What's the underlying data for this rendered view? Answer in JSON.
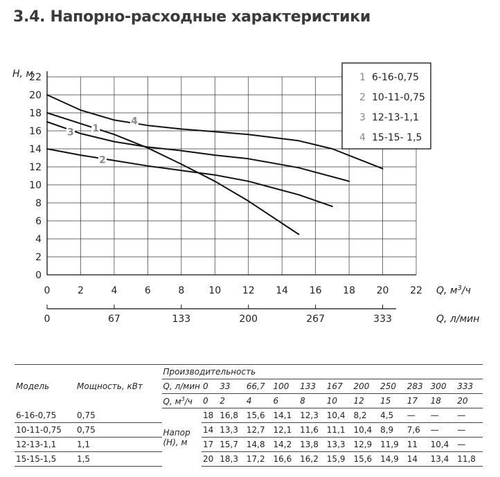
{
  "title": "3.4. Напорно-расходные характеристики",
  "chart_data": {
    "type": "line",
    "ylabel": "H, м",
    "xlabel": "Q, м³/ч",
    "xlabel_unit_base": "Q, м",
    "xlabel_unit_sup": "3",
    "xlabel_unit_end": "/ч",
    "x2label": "Q, л/мин",
    "xlim": [
      0,
      22
    ],
    "ylim": [
      0,
      22
    ],
    "x_ticks": [
      0,
      2,
      4,
      6,
      8,
      10,
      12,
      14,
      16,
      18,
      20,
      22
    ],
    "y_ticks": [
      0,
      2,
      4,
      6,
      8,
      10,
      12,
      14,
      16,
      18,
      20,
      22
    ],
    "x2_ticks": [
      {
        "x": 0,
        "label": "0"
      },
      {
        "x": 4,
        "label": "67"
      },
      {
        "x": 8,
        "label": "133"
      },
      {
        "x": 12,
        "label": "200"
      },
      {
        "x": 16,
        "label": "267"
      },
      {
        "x": 20,
        "label": "333"
      }
    ],
    "grid": true,
    "legend_position": "top-right",
    "series": [
      {
        "num": "1",
        "name": "6-16-0,75",
        "label_at": [
          2.9,
          16.3
        ],
        "x": [
          0,
          2,
          4,
          6,
          8,
          10,
          12,
          15
        ],
        "y": [
          18,
          16.8,
          15.6,
          14.1,
          12.3,
          10.4,
          8.2,
          4.5
        ]
      },
      {
        "num": "2",
        "name": "10-11-0,75",
        "label_at": [
          3.3,
          12.8
        ],
        "x": [
          0,
          2,
          4,
          6,
          8,
          10,
          12,
          15,
          17
        ],
        "y": [
          14,
          13.3,
          12.7,
          12.1,
          11.6,
          11.1,
          10.4,
          8.9,
          7.6
        ]
      },
      {
        "num": "3",
        "name": "12-13-1,1",
        "label_at": [
          1.4,
          15.9
        ],
        "x": [
          0,
          2,
          4,
          6,
          8,
          10,
          12,
          15,
          18
        ],
        "y": [
          17,
          15.7,
          14.8,
          14.2,
          13.8,
          13.3,
          12.9,
          11.9,
          10.4
        ]
      },
      {
        "num": "4",
        "name": "15-15- 1,5",
        "label_at": [
          5.2,
          17.1
        ],
        "x": [
          0,
          2,
          4,
          6,
          8,
          10,
          12,
          15,
          17,
          20
        ],
        "y": [
          20,
          18.3,
          17.2,
          16.6,
          16.2,
          15.9,
          15.6,
          14.9,
          14,
          11.8
        ]
      }
    ]
  },
  "table": {
    "col_model": "Модель",
    "col_power": "Мощность, кВт",
    "col_perf": "Производительность",
    "row_q_lmin_label": "Q, л/мин",
    "row_q_m3h_base": "Q, м",
    "row_q_m3h_sup": "3",
    "row_q_m3h_end": "/ч",
    "q_lmin": [
      "0",
      "33",
      "66,7",
      "100",
      "133",
      "167",
      "200",
      "250",
      "283",
      "300",
      "333"
    ],
    "q_m3h": [
      "0",
      "2",
      "4",
      "6",
      "8",
      "10",
      "12",
      "15",
      "17",
      "18",
      "20"
    ],
    "head_label": "Напор (Н), м",
    "rows": [
      {
        "model": "6-16-0,75",
        "power": "0,75",
        "values": [
          "18",
          "16,8",
          "15,6",
          "14,1",
          "12,3",
          "10,4",
          "8,2",
          "4,5",
          "—",
          "—",
          "—"
        ]
      },
      {
        "model": "10-11-0,75",
        "power": "0,75",
        "values": [
          "14",
          "13,3",
          "12,7",
          "12,1",
          "11,6",
          "11,1",
          "10,4",
          "8,9",
          "7,6",
          "—",
          "—"
        ]
      },
      {
        "model": "12-13-1,1",
        "power": "1,1",
        "values": [
          "17",
          "15,7",
          "14,8",
          "14,2",
          "13,8",
          "13,3",
          "12,9",
          "11,9",
          "11",
          "10,4",
          "—"
        ]
      },
      {
        "model": "15-15-1,5",
        "power": "1,5",
        "values": [
          "20",
          "18,3",
          "17,2",
          "16,6",
          "16,2",
          "15,9",
          "15,6",
          "14,9",
          "14",
          "13,4",
          "11,8"
        ]
      }
    ]
  }
}
